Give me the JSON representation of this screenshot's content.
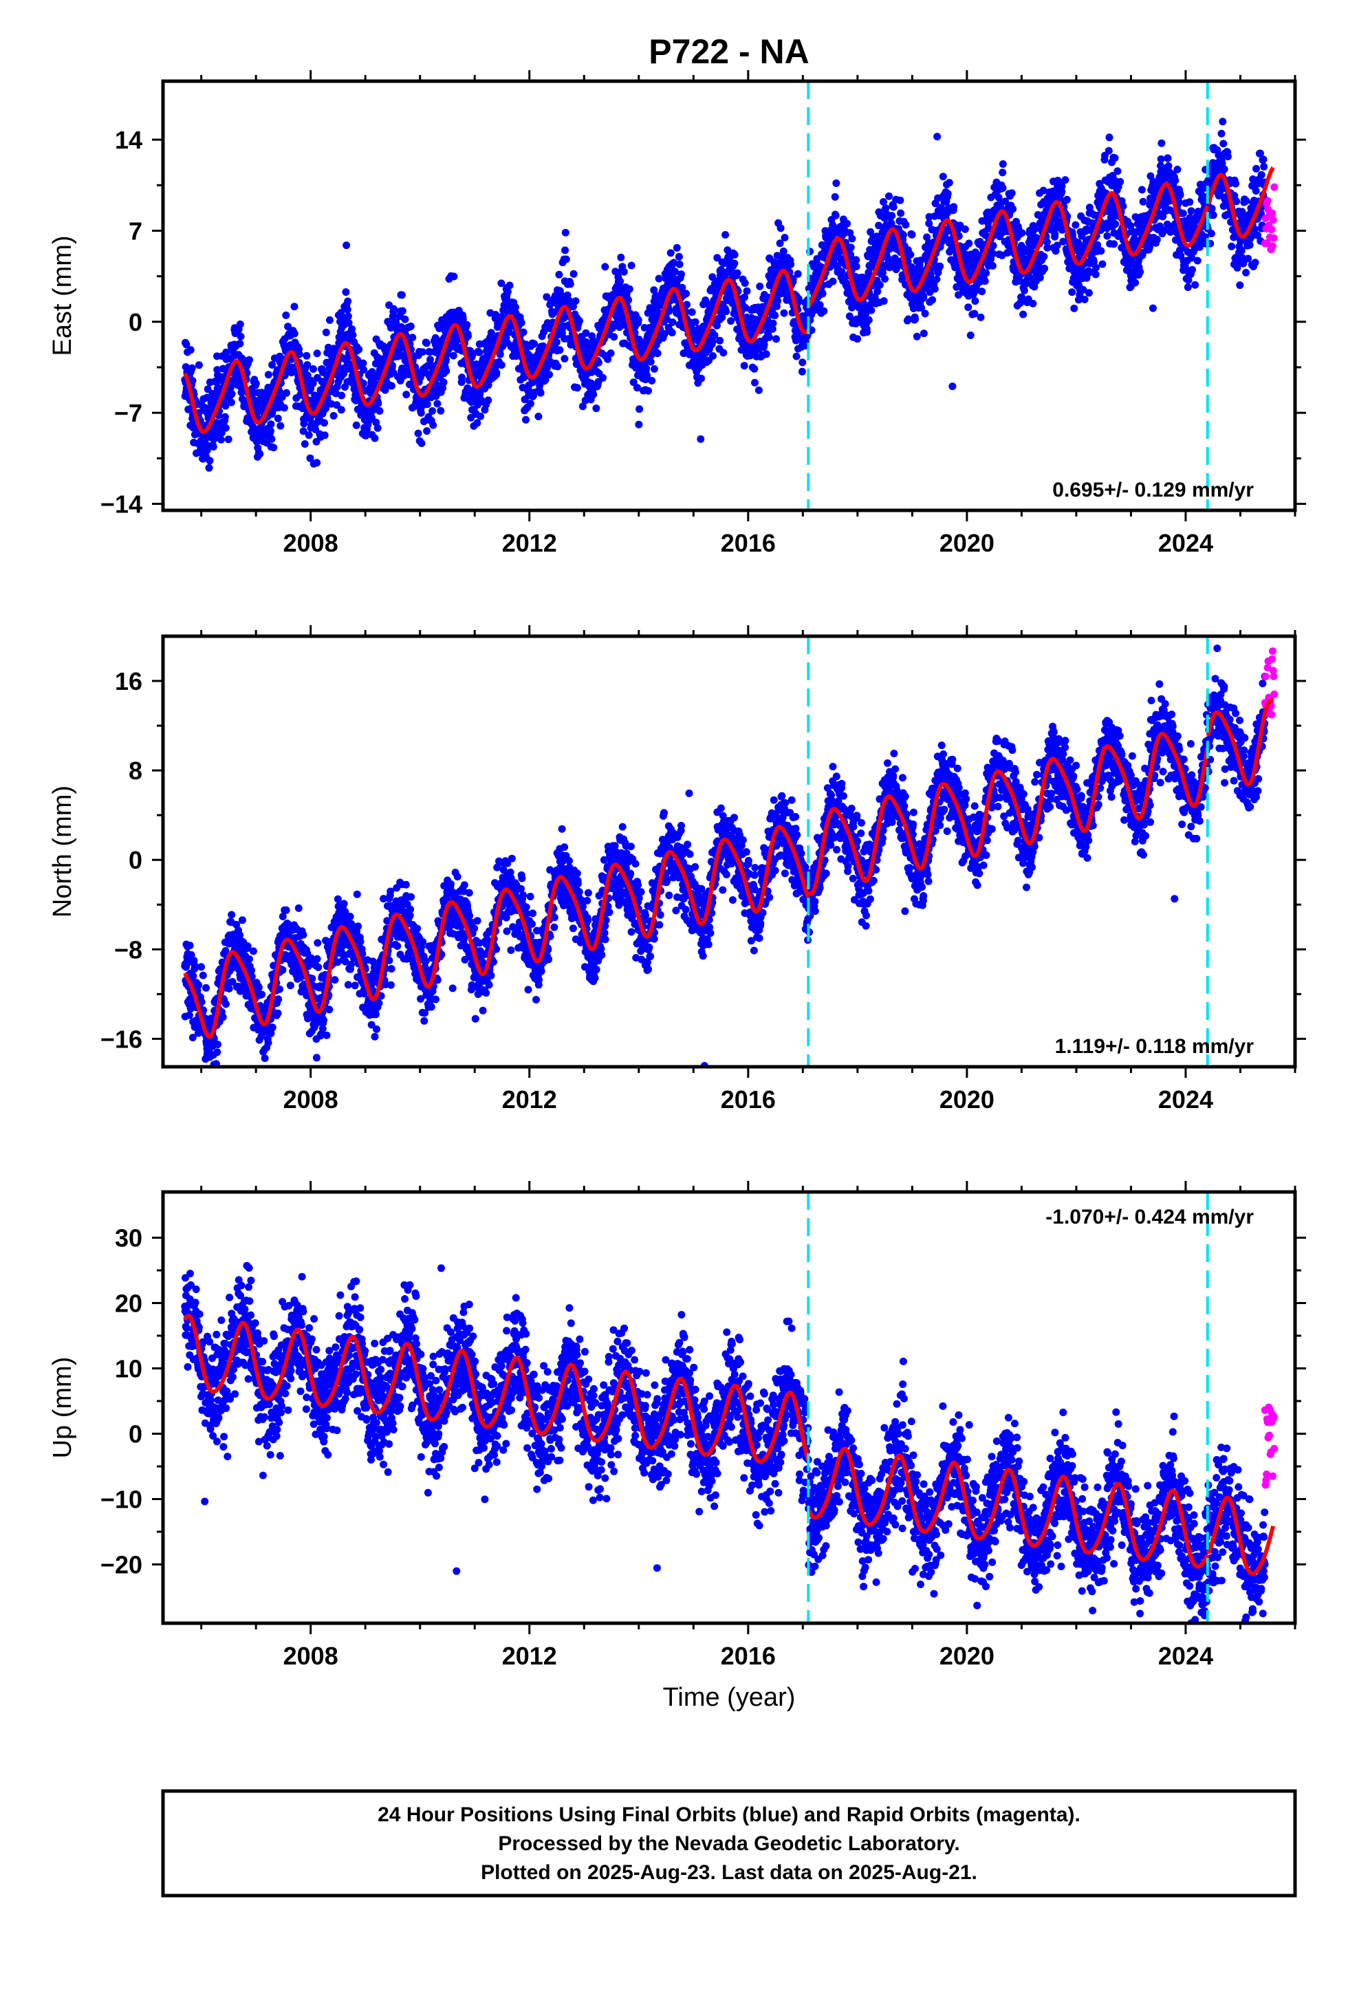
{
  "title": "P722 - NA",
  "xlabel": "Time (year)",
  "caption": {
    "lines": [
      "24 Hour Positions Using Final Orbits (blue) and Rapid Orbits (magenta).",
      "Processed by the Nevada Geodetic Laboratory.",
      "Plotted on 2025-Aug-23. Last data on 2025-Aug-21."
    ]
  },
  "colors": {
    "final_points": "#0000ff",
    "rapid_points": "#ff00ff",
    "model": "#ff0000",
    "events": "#00e5ee"
  },
  "chart_data": [
    {
      "type": "scatter",
      "ylabel": "East (mm)",
      "rate_label": "0.695+/- 0.129 mm/yr",
      "rate_position": "bottom-right",
      "xlim": [
        2005.3,
        2026.0
      ],
      "ylim": [
        -14.5,
        18.5
      ],
      "xticks": [
        2008,
        2012,
        2016,
        2020,
        2024
      ],
      "yticks": [
        -14,
        -7,
        0,
        7,
        14
      ],
      "events": [
        2017.1,
        2024.4
      ],
      "model": {
        "start": 2005.7,
        "end": 2025.6,
        "value_at_start": -6.3,
        "slope": 0.695,
        "annual_amplitude": 2.4,
        "annual_peak": 0.6,
        "semiannual_amplitude": 0.4,
        "semiannual_peak": 0.2,
        "offsets": [
          {
            "time": 2017.1,
            "size": 1.8
          },
          {
            "time": 2024.4,
            "size": 0.0
          }
        ]
      },
      "scatter_sigma": 1.5,
      "rapid": {
        "start": 2025.45,
        "end": 2025.62,
        "min": 5.5,
        "max": 11.2
      }
    },
    {
      "type": "scatter",
      "ylabel": "North (mm)",
      "rate_label": "1.119+/- 0.118 mm/yr",
      "rate_position": "bottom-right",
      "xlim": [
        2005.3,
        2026.0
      ],
      "ylim": [
        -18.5,
        20.0
      ],
      "xticks": [
        2008,
        2012,
        2016,
        2020,
        2024
      ],
      "yticks": [
        -16,
        -8,
        0,
        8,
        16
      ],
      "events": [
        2017.1,
        2024.4
      ],
      "model": {
        "start": 2005.7,
        "end": 2025.6,
        "value_at_start": -12.5,
        "slope": 1.119,
        "annual_amplitude": 3.4,
        "annual_peak": 0.62,
        "semiannual_amplitude": 0.6,
        "semiannual_peak": 0.45,
        "offsets": [
          {
            "time": 2017.1,
            "size": 0.5
          },
          {
            "time": 2024.4,
            "size": 0.8
          }
        ]
      },
      "scatter_sigma": 1.6,
      "rapid": {
        "start": 2025.45,
        "end": 2025.62,
        "min": 12.5,
        "max": 19.0
      }
    },
    {
      "type": "scatter",
      "ylabel": "Up (mm)",
      "rate_label": "-1.070+/- 0.424 mm/yr",
      "rate_position": "top-right",
      "xlim": [
        2005.3,
        2026.0
      ],
      "ylim": [
        -29.0,
        37.0
      ],
      "xticks": [
        2008,
        2012,
        2016,
        2020,
        2024
      ],
      "yticks": [
        -20,
        -10,
        0,
        10,
        20,
        30
      ],
      "events": [
        2017.1,
        2024.4
      ],
      "model": {
        "start": 2005.7,
        "end": 2025.6,
        "value_at_start": 12.0,
        "slope": -1.07,
        "annual_amplitude": 5.5,
        "annual_peak": 0.75,
        "semiannual_amplitude": 0.7,
        "semiannual_peak": 0.3,
        "offsets": [
          {
            "time": 2017.1,
            "size": -7.5
          },
          {
            "time": 2024.4,
            "size": 0.0
          }
        ]
      },
      "scatter_sigma": 4.0,
      "rapid": {
        "start": 2025.45,
        "end": 2025.62,
        "min": -9.0,
        "max": 6.0
      }
    }
  ]
}
